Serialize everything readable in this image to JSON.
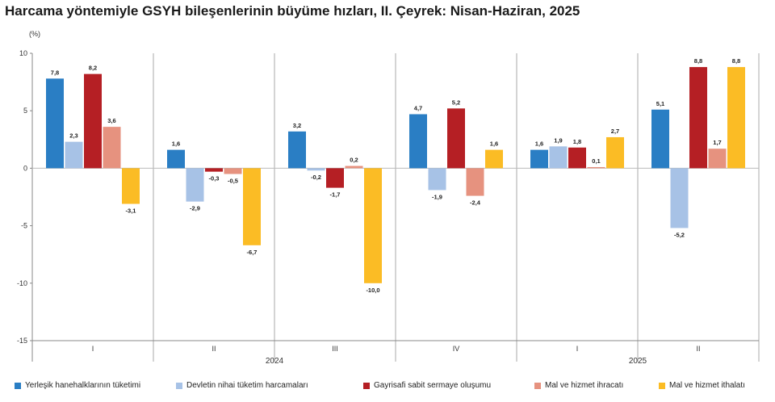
{
  "title": "Harcama yöntemiyle GSYH bileşenlerinin büyüme hızları, II. Çeyrek: Nisan-Haziran, 2025",
  "unit": "(%)",
  "chart_data": {
    "type": "bar",
    "title": "Harcama yöntemiyle GSYH bileşenlerinin büyüme hızları, II. Çeyrek: Nisan-Haziran, 2025",
    "ylabel": "(%)",
    "ylim": [
      -15,
      10
    ],
    "yticks": [
      "10",
      "5",
      "0",
      "-5",
      "-10",
      "-15"
    ],
    "grid": false,
    "legend": "bottom",
    "categories": [
      "I",
      "II",
      "III",
      "IV",
      "I",
      "II"
    ],
    "groups": [
      {
        "label": "2024",
        "categories": [
          "I",
          "II",
          "III",
          "IV"
        ]
      },
      {
        "label": "2025",
        "categories": [
          "I",
          "II"
        ]
      }
    ],
    "series": [
      {
        "name": "Yerleşik hanehalklarının tüketimi",
        "color": "#2a7ec4",
        "values": [
          7.8,
          1.6,
          3.2,
          4.7,
          1.6,
          5.1
        ],
        "labels": [
          "7,8",
          "1,6",
          "3,2",
          "4,7",
          "1,6",
          "5,1"
        ]
      },
      {
        "name": "Devletin nihai tüketim harcamaları",
        "color": "#a7c2e6",
        "values": [
          2.3,
          -2.9,
          -0.2,
          -1.9,
          1.9,
          -5.2
        ],
        "labels": [
          "2,3",
          "-2,9",
          "-0,2",
          "-1,9",
          "1,9",
          "-5,2"
        ]
      },
      {
        "name": "Gayrisafi sabit sermaye oluşumu",
        "color": "#b51f24",
        "values": [
          8.2,
          -0.3,
          -1.7,
          5.2,
          1.8,
          8.8
        ],
        "labels": [
          "8,2",
          "-0,3",
          "-1,7",
          "5,2",
          "1,8",
          "8,8"
        ]
      },
      {
        "name": "Mal ve hizmet ihracatı",
        "color": "#e6927f",
        "values": [
          3.6,
          -0.5,
          0.2,
          -2.4,
          0.1,
          1.7
        ],
        "labels": [
          "3,6",
          "-0,5",
          "0,2",
          "-2,4",
          "0,1",
          "1,7"
        ]
      },
      {
        "name": "Mal ve hizmet ithalatı",
        "color": "#fbbc25",
        "values": [
          -3.1,
          -6.7,
          -10.0,
          1.6,
          2.7,
          8.8
        ],
        "labels": [
          "-3,1",
          "-6,7",
          "-10,0",
          "1,6",
          "2,7",
          "8,8"
        ]
      }
    ]
  }
}
